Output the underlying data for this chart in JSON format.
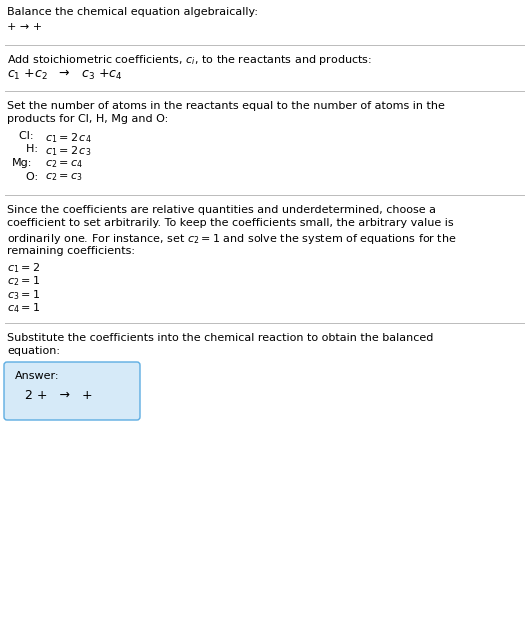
{
  "bg_color": "#ffffff",
  "text_color": "#000000",
  "answer_box_color": "#d6eaf8",
  "answer_box_border": "#5dade2",
  "s1_line1": "Balance the chemical equation algebraically:",
  "s1_line2": "+ → +",
  "s2_line1_a": "Add stoichiometric coefficients, ",
  "s2_line1_b": ", to the reactants and products:",
  "s2_line2": "$c_1$ +$c_2$   →   $c_3$ +$c_4$",
  "s3_line1": "Set the number of atoms in the reactants equal to the number of atoms in the",
  "s3_line2": "products for Cl, H, Mg and O:",
  "s3_equations": [
    [
      "  Cl:",
      "$c_1 = 2\\,c_4$"
    ],
    [
      "    H:",
      "$c_1 = 2\\,c_3$"
    ],
    [
      "Mg:",
      "$c_2 = c_4$"
    ],
    [
      "    O:",
      "$c_2 = c_3$"
    ]
  ],
  "s4_para": [
    "Since the coefficients are relative quantities and underdetermined, choose a",
    "coefficient to set arbitrarily. To keep the coefficients small, the arbitrary value is",
    "ordinarily one. For instance, set $c_2 = 1$ and solve the system of equations for the",
    "remaining coefficients:"
  ],
  "s4_coeffs": [
    "$c_1 = 2$",
    "$c_2 = 1$",
    "$c_3 = 1$",
    "$c_4 = 1$"
  ],
  "s5_line1": "Substitute the coefficients into the chemical reaction to obtain the balanced",
  "s5_line2": "equation:",
  "answer_label": "Answer:",
  "answer_eq": "2 +   →   +"
}
